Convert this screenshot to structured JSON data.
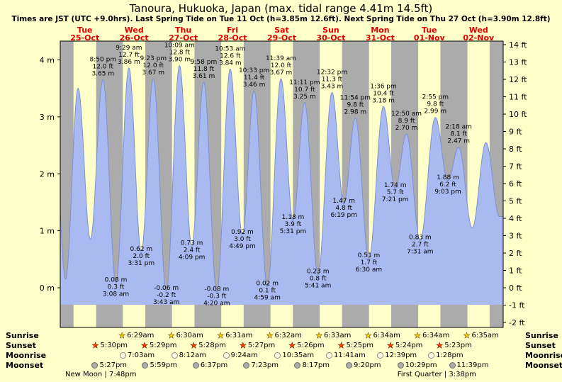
{
  "title": "Tanoura, Hukuoka, Japan (max. tidal range 4.41m 14.5ft)",
  "subtitle": "Times are JST (UTC +9.0hrs). Last Spring Tide on Tue 11 Oct (h=3.85m 12.6ft). Next Spring Tide on Thu 27 Oct (h=3.90m 12.8ft)",
  "colors": {
    "page_bg": "#ffffc9",
    "day_band": "#ffffc9",
    "night_band": "#ababab",
    "tide_fill": "#a9baf0",
    "tide_line": "#7c90d8",
    "frame": "#000000",
    "day_label": "#e00000",
    "text": "#000000",
    "sunrise_star": "#ffd700",
    "sunset_star": "#ff4500",
    "moonrise_dot": "#ffffe6",
    "moonset_dot": "#ababab"
  },
  "astro_labels": {
    "sunrise": "Sunrise",
    "sunset": "Sunset",
    "moonrise": "Moonrise",
    "moonset": "Moonset"
  },
  "chart_data": {
    "type": "area",
    "x_axis": "time, 9 days from Tue 25-Oct to Wed 02-Nov, JST",
    "ylabel_left": "meters",
    "ylabel_right": "feet",
    "axis_range_m": [
      -0.7,
      4.33
    ],
    "axis_range_ft": [
      -2,
      14
    ],
    "grid": false,
    "days": [
      {
        "name": "Tue",
        "date": "25-Oct"
      },
      {
        "name": "Wed",
        "date": "26-Oct"
      },
      {
        "name": "Thu",
        "date": "27-Oct"
      },
      {
        "name": "Fri",
        "date": "28-Oct"
      },
      {
        "name": "Sat",
        "date": "29-Oct"
      },
      {
        "name": "Sun",
        "date": "30-Oct"
      },
      {
        "name": "Mon",
        "date": "31-Oct"
      },
      {
        "name": "Tue",
        "date": "01-Nov"
      },
      {
        "name": "Wed",
        "date": "02-Nov"
      }
    ],
    "y_axis_m": [
      "4 m",
      "3 m",
      "2 m",
      "1 m",
      "0 m"
    ],
    "y_axis_ft": [
      "14 ft",
      "13 ft",
      "12 ft",
      "11 ft",
      "10 ft",
      "9 ft",
      "8 ft",
      "7 ft",
      "6 ft",
      "5 ft",
      "4 ft",
      "3 ft",
      "2 ft",
      "1 ft",
      "0 ft",
      "-1 ft",
      "-2 ft"
    ],
    "extremes": [
      {
        "unlabeled": true,
        "type": "high",
        "t_hours": -3.6,
        "height_m": 3.45
      },
      {
        "unlabeled": true,
        "type": "low",
        "t_hours": 2.6,
        "height_m": 0.15
      },
      {
        "unlabeled": true,
        "type": "high",
        "t_hours": 8.7,
        "height_m": 3.5
      },
      {
        "unlabeled": true,
        "type": "low",
        "t_hours": 14.7,
        "height_m": 0.85
      },
      {
        "type": "high",
        "day": 0,
        "time": "8:50 pm",
        "ft": "12.0 ft",
        "m": "3.65 m",
        "height_m": 3.65
      },
      {
        "type": "low",
        "day": 1,
        "time": "3:08 am",
        "ft": "0.3 ft",
        "m": "0.08 m",
        "height_m": 0.08
      },
      {
        "type": "high",
        "day": 1,
        "time": "9:29 am",
        "ft": "12.7 ft",
        "m": "3.86 m",
        "height_m": 3.86
      },
      {
        "type": "low",
        "day": 1,
        "time": "3:31 pm",
        "ft": "2.0 ft",
        "m": "0.62 m",
        "height_m": 0.62
      },
      {
        "type": "high",
        "day": 1,
        "time": "9:23 pm",
        "ft": "12.0 ft",
        "m": "3.67 m",
        "height_m": 3.67
      },
      {
        "type": "low",
        "day": 2,
        "time": "3:43 am",
        "ft": "-0.2 ft",
        "m": "-0.06 m",
        "height_m": -0.06
      },
      {
        "type": "high",
        "day": 2,
        "time": "10:09 am",
        "ft": "12.8 ft",
        "m": "3.90 m",
        "height_m": 3.9
      },
      {
        "type": "low",
        "day": 2,
        "time": "4:09 pm",
        "ft": "2.4 ft",
        "m": "0.73 m",
        "height_m": 0.73
      },
      {
        "type": "high",
        "day": 2,
        "time": "9:58 pm",
        "ft": "11.8 ft",
        "m": "3.61 m",
        "height_m": 3.61
      },
      {
        "type": "low",
        "day": 3,
        "time": "4:20 am",
        "ft": "-0.3 ft",
        "m": "-0.08 m",
        "height_m": -0.08
      },
      {
        "type": "high",
        "day": 3,
        "time": "10:53 am",
        "ft": "12.6 ft",
        "m": "3.84 m",
        "height_m": 3.84
      },
      {
        "type": "low",
        "day": 3,
        "time": "4:49 pm",
        "ft": "3.0 ft",
        "m": "0.92 m",
        "height_m": 0.92
      },
      {
        "type": "high",
        "day": 3,
        "time": "10:33 pm",
        "ft": "11.4 ft",
        "m": "3.46 m",
        "height_m": 3.46
      },
      {
        "type": "low",
        "day": 4,
        "time": "4:59 am",
        "ft": "0.1 ft",
        "m": "0.02 m",
        "height_m": 0.02
      },
      {
        "type": "high",
        "day": 4,
        "time": "11:39 am",
        "ft": "12.0 ft",
        "m": "3.67 m",
        "height_m": 3.67
      },
      {
        "type": "low",
        "day": 4,
        "time": "5:31 pm",
        "ft": "3.9 ft",
        "m": "1.18 m",
        "height_m": 1.18
      },
      {
        "type": "high",
        "day": 4,
        "time": "11:11 pm",
        "ft": "10.7 ft",
        "m": "3.25 m",
        "height_m": 3.25
      },
      {
        "type": "low",
        "day": 5,
        "time": "5:41 am",
        "ft": "0.8 ft",
        "m": "0.23 m",
        "height_m": 0.23
      },
      {
        "type": "high",
        "day": 5,
        "time": "12:32 pm",
        "ft": "11.3 ft",
        "m": "3.43 m",
        "height_m": 3.43
      },
      {
        "type": "low",
        "day": 5,
        "time": "6:19 pm",
        "ft": "4.8 ft",
        "m": "1.47 m",
        "height_m": 1.47
      },
      {
        "type": "high",
        "day": 5,
        "time": "11:54 pm",
        "ft": "9.8 ft",
        "m": "2.98 m",
        "height_m": 2.98
      },
      {
        "type": "low",
        "day": 6,
        "time": "6:30 am",
        "ft": "1.7 ft",
        "m": "0.51 m",
        "height_m": 0.51
      },
      {
        "type": "high",
        "day": 6,
        "time": "1:36 pm",
        "ft": "10.4 ft",
        "m": "3.18 m",
        "height_m": 3.18
      },
      {
        "type": "low",
        "day": 6,
        "time": "7:21 pm",
        "ft": "5.7 ft",
        "m": "1.74 m",
        "height_m": 1.74
      },
      {
        "type": "high",
        "day": 7,
        "time": "12:50 am",
        "ft": "8.9 ft",
        "m": "2.70 m",
        "height_m": 2.7
      },
      {
        "type": "low",
        "day": 7,
        "time": "7:31 am",
        "ft": "2.7 ft",
        "m": "0.83 m",
        "height_m": 0.83
      },
      {
        "type": "high",
        "day": 7,
        "time": "2:55 pm",
        "ft": "9.8 ft",
        "m": "2.99 m",
        "height_m": 2.99
      },
      {
        "type": "low",
        "day": 7,
        "time": "9:03 pm",
        "ft": "6.2 ft",
        "m": "1.88 m",
        "height_m": 1.88
      },
      {
        "type": "high",
        "day": 8,
        "time": "2:18 am",
        "ft": "8.1 ft",
        "m": "2.47 m",
        "height_m": 2.47
      },
      {
        "unlabeled": true,
        "type": "low",
        "t_hours": 200.9,
        "height_m": 1.05
      },
      {
        "unlabeled": true,
        "type": "high",
        "t_hours": 207.6,
        "height_m": 2.55
      },
      {
        "unlabeled": true,
        "type": "low",
        "t_hours": 214.2,
        "height_m": 1.25
      }
    ],
    "sun": {
      "sunrise": [
        {
          "day": 1,
          "time": "6:29am"
        },
        {
          "day": 2,
          "time": "6:30am"
        },
        {
          "day": 3,
          "time": "6:31am"
        },
        {
          "day": 4,
          "time": "6:32am"
        },
        {
          "day": 5,
          "time": "6:33am"
        },
        {
          "day": 6,
          "time": "6:34am"
        },
        {
          "day": 7,
          "time": "6:34am"
        },
        {
          "day": 8,
          "time": "6:35am"
        }
      ],
      "sunset": [
        {
          "day": 0,
          "time": "5:30pm"
        },
        {
          "day": 1,
          "time": "5:29pm"
        },
        {
          "day": 2,
          "time": "5:28pm"
        },
        {
          "day": 3,
          "time": "5:27pm"
        },
        {
          "day": 4,
          "time": "5:26pm"
        },
        {
          "day": 5,
          "time": "5:25pm"
        },
        {
          "day": 6,
          "time": "5:24pm"
        },
        {
          "day": 7,
          "time": "5:23pm"
        }
      ]
    },
    "moon": {
      "moonrise": [
        {
          "day": 1,
          "time": "7:03am"
        },
        {
          "day": 2,
          "time": "8:12am"
        },
        {
          "day": 3,
          "time": "9:24am"
        },
        {
          "day": 4,
          "time": "10:35am"
        },
        {
          "day": 5,
          "time": "11:41am"
        },
        {
          "day": 6,
          "time": "12:39pm"
        },
        {
          "day": 7,
          "time": "1:28pm"
        }
      ],
      "moonset": [
        {
          "day": 0,
          "time": "5:27pm"
        },
        {
          "day": 1,
          "time": "5:59pm"
        },
        {
          "day": 2,
          "time": "6:37pm"
        },
        {
          "day": 3,
          "time": "7:23pm"
        },
        {
          "day": 4,
          "time": "8:17pm"
        },
        {
          "day": 5,
          "time": "9:20pm"
        },
        {
          "day": 6,
          "time": "10:29pm"
        },
        {
          "day": 7,
          "time": "11:39pm"
        }
      ]
    },
    "phases": [
      {
        "name": "New Moon",
        "separator": "|",
        "time": "7:48pm",
        "day": 0
      },
      {
        "name": "First Quarter",
        "separator": "|",
        "time": "3:38pm",
        "day": 7
      }
    ]
  }
}
